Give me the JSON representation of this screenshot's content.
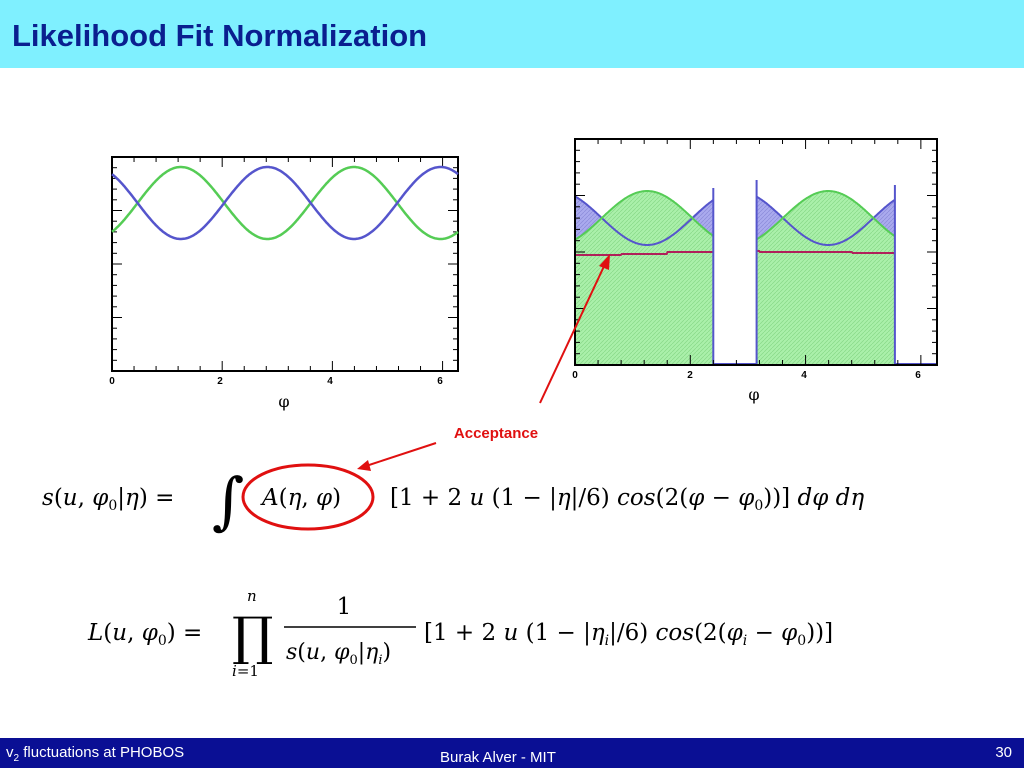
{
  "slide": {
    "title": "Likelihood Fit Normalization",
    "annotation": "Acceptance"
  },
  "colors": {
    "header_bg": "#7ff0ff",
    "title": "#0a1f8f",
    "footer_bg": "#0a0f94",
    "green_curve": "#55cc55",
    "blue_curve": "#5555cc",
    "green_fill": "#aaf0aa",
    "blue_fill": "#aaaaee",
    "acceptance_line": "#b0205a",
    "annotation_red": "#e01010"
  },
  "chart_data": [
    {
      "type": "line",
      "xlabel": "φ",
      "x_ticks": [
        "0",
        "2",
        "4",
        "6"
      ],
      "xlim": [
        0,
        6.28
      ],
      "series": [
        {
          "color": "green",
          "form": "cos(2(φ-φ0))",
          "phase": 1.25
        },
        {
          "color": "blue",
          "form": "-cos(2(φ-φ0))",
          "phase": 1.25
        }
      ]
    },
    {
      "type": "area",
      "xlabel": "φ",
      "x_ticks": [
        "0",
        "2",
        "4",
        "6"
      ],
      "xlim": [
        0,
        6.28
      ],
      "gap": [
        2.4,
        3.15
      ],
      "series": [
        {
          "color": "green",
          "form": "acceptance × cos(2(φ-φ0))"
        },
        {
          "color": "blue",
          "form": "acceptance × -cos(2(φ-φ0))"
        },
        {
          "color": "magenta",
          "form": "acceptance"
        }
      ]
    }
  ],
  "footer": {
    "left_prefix": "v",
    "left_sub": "2",
    "left_suffix": " fluctuations at PHOBOS",
    "center": "Burak Alver - MIT",
    "page": "30"
  }
}
